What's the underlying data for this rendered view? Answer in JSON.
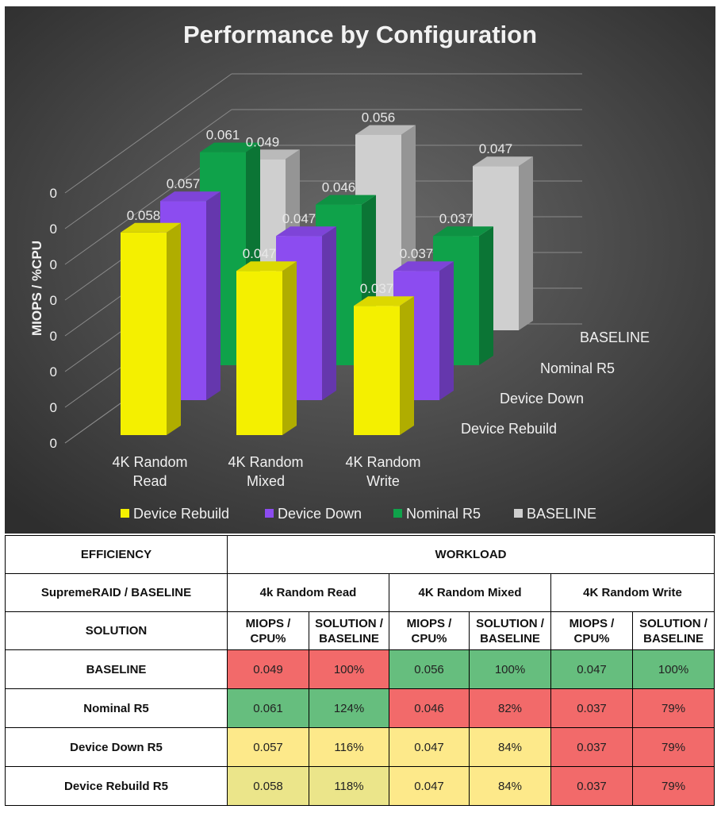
{
  "chart_data": {
    "type": "bar",
    "title": "Performance by Configuration",
    "ylabel": "MIOPS / %CPU",
    "y_tick_labels": [
      "0",
      "0",
      "0",
      "0",
      "0",
      "0",
      "0",
      "0"
    ],
    "categories": [
      "4K Random Read",
      "4K Random Mixed",
      "4K Random Write"
    ],
    "category_lines": [
      [
        "4K Random",
        "Read"
      ],
      [
        "4K Random",
        "Mixed"
      ],
      [
        "4K Random",
        "Write"
      ]
    ],
    "series": [
      {
        "name": "Device Rebuild",
        "values": [
          0.058,
          0.047,
          0.037
        ],
        "labels": [
          "0.058",
          "0.047",
          "0.037"
        ],
        "color": "#f4f000"
      },
      {
        "name": "Device Down",
        "values": [
          0.057,
          0.047,
          0.037
        ],
        "labels": [
          "0.057",
          "0.047",
          "0.037"
        ],
        "color": "#8c4cf0"
      },
      {
        "name": "Nominal R5",
        "values": [
          0.061,
          0.046,
          0.037
        ],
        "labels": [
          "0.061",
          "0.046",
          "0.037"
        ],
        "color": "#0fa24a"
      },
      {
        "name": "BASELINE",
        "values": [
          0.049,
          0.056,
          0.047
        ],
        "labels": [
          "0.049",
          "0.056",
          "0.047"
        ],
        "color": "#cfcfcf"
      }
    ],
    "depth_labels": [
      "BASELINE",
      "Nominal R5",
      "Device Down",
      "Device Rebuild"
    ],
    "legend": [
      "Device Rebuild",
      "Device Down",
      "Nominal R5",
      "BASELINE"
    ]
  },
  "table": {
    "efficiency": "EFFICIENCY",
    "workload": "WORKLOAD",
    "ratio": "SupremeRAID / BASELINE",
    "solution": "SOLUTION",
    "workloads": [
      "4k Random Read",
      "4K Random Mixed",
      "4K Random Write"
    ],
    "sub1a": "MIOPS /",
    "sub1b": "CPU%",
    "sub2a": "SOLUTION /",
    "sub2b": "BASELINE",
    "rows": [
      {
        "name": "BASELINE",
        "cells": [
          "0.049",
          "100%",
          "0.056",
          "100%",
          "0.047",
          "100%"
        ],
        "colors": [
          "red",
          "red",
          "green",
          "green",
          "green",
          "green"
        ]
      },
      {
        "name": "Nominal R5",
        "cells": [
          "0.061",
          "124%",
          "0.046",
          "82%",
          "0.037",
          "79%"
        ],
        "colors": [
          "green",
          "green",
          "red",
          "red",
          "red",
          "red"
        ]
      },
      {
        "name": "Device Down R5",
        "cells": [
          "0.057",
          "116%",
          "0.047",
          "84%",
          "0.037",
          "79%"
        ],
        "colors": [
          "yellow",
          "yellow",
          "yellow",
          "yellow",
          "red",
          "red"
        ]
      },
      {
        "name": "Device Rebuild R5",
        "cells": [
          "0.058",
          "118%",
          "0.047",
          "84%",
          "0.037",
          "79%"
        ],
        "colors": [
          "lyellow",
          "lyellow",
          "yellow",
          "yellow",
          "red",
          "red"
        ]
      }
    ]
  }
}
